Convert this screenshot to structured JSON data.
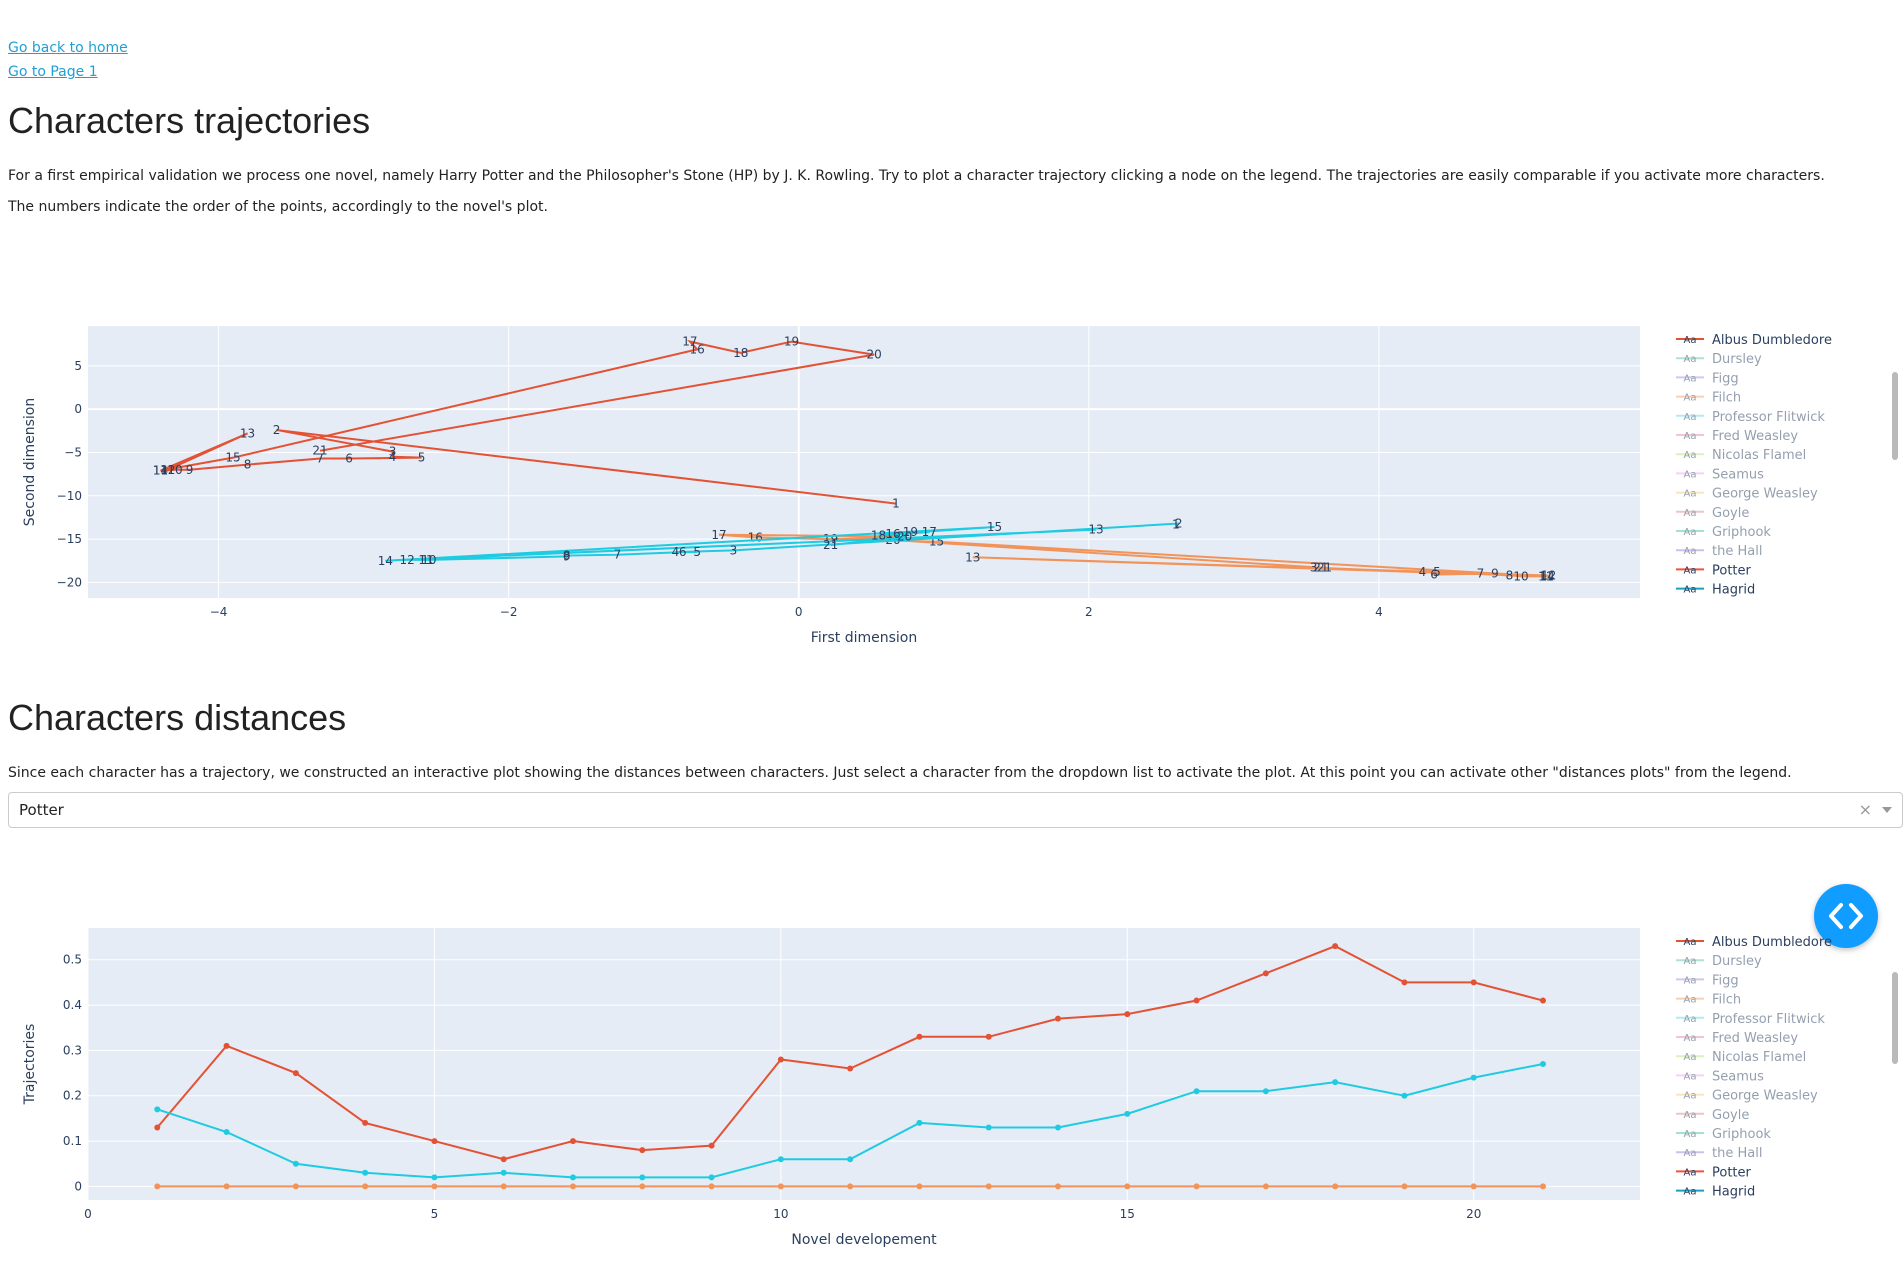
{
  "nav": {
    "home": "Go back to home",
    "page1": "Go to Page 1"
  },
  "section1": {
    "title": "Characters trajectories",
    "p1": "For a first empirical validation we process one novel, namely Harry Potter and the Philosopher's Stone (HP) by J. K. Rowling. Try to plot a character trajectory clicking a node on the legend. The trajectories are easily comparable if you activate more characters.",
    "p2": "The numbers indicate the order of the points, accordingly to the novel's plot."
  },
  "section2": {
    "title": "Characters distances",
    "p1": "Since each character has a trajectory, we constructed an interactive plot showing the distances between characters. Just select a character from the dropdown list to activate the plot. At this point you can activate other \"distances plots\" from the legend."
  },
  "dropdown": {
    "value": "Potter",
    "clear": "×"
  },
  "legend_marker": "Aa",
  "chart_data": [
    {
      "type": "scatter",
      "title": "",
      "xlabel": "First dimension",
      "ylabel": "Second dimension",
      "xlim": [
        -4.9,
        5.8
      ],
      "ylim": [
        -21.8,
        9.6
      ],
      "xticks": [
        -4,
        -2,
        0,
        2,
        4
      ],
      "yticks": [
        5,
        0,
        -5,
        -10,
        -15,
        -20
      ],
      "legend": [
        {
          "name": "Albus Dumbledore",
          "active": true,
          "color": "#e45235"
        },
        {
          "name": "Dursley",
          "active": false,
          "color": "#5fc9a7"
        },
        {
          "name": "Figg",
          "active": false,
          "color": "#a98ee6"
        },
        {
          "name": "Filch",
          "active": false,
          "color": "#f3a06a"
        },
        {
          "name": "Professor Flitwick",
          "active": false,
          "color": "#64d7ec"
        },
        {
          "name": "Fred Weasley",
          "active": false,
          "color": "#f08bab"
        },
        {
          "name": "Nicolas Flamel",
          "active": false,
          "color": "#b6e37d"
        },
        {
          "name": "Seamus",
          "active": false,
          "color": "#f0a4f0"
        },
        {
          "name": "George Weasley",
          "active": false,
          "color": "#f7cc7c"
        },
        {
          "name": "Goyle",
          "active": false,
          "color": "#e08a8a"
        },
        {
          "name": "Griphook",
          "active": false,
          "color": "#4cc6a2"
        },
        {
          "name": "the Hall",
          "active": false,
          "color": "#9d82e0"
        },
        {
          "name": "Potter",
          "active": true,
          "color": "#ef553b"
        },
        {
          "name": "Hagrid",
          "active": true,
          "color": "#1f9fc0"
        }
      ],
      "series": [
        {
          "name": "Albus Dumbledore",
          "color": "#e45235",
          "points": [
            {
              "label": "1",
              "x": 0.67,
              "y": -10.9
            },
            {
              "label": "2",
              "x": -3.6,
              "y": -2.4
            },
            {
              "label": "3",
              "x": -2.8,
              "y": -4.9
            },
            {
              "label": "4",
              "x": -2.8,
              "y": -5.5
            },
            {
              "label": "5",
              "x": -2.6,
              "y": -5.6
            },
            {
              "label": "6",
              "x": -3.1,
              "y": -5.7
            },
            {
              "label": "7",
              "x": -3.3,
              "y": -5.7
            },
            {
              "label": "8",
              "x": -3.8,
              "y": -6.4
            },
            {
              "label": "9",
              "x": -4.2,
              "y": -7.0
            },
            {
              "label": "10",
              "x": -4.3,
              "y": -7.0
            },
            {
              "label": "11",
              "x": -4.4,
              "y": -7.1
            },
            {
              "label": "12",
              "x": -4.35,
              "y": -7.0
            },
            {
              "label": "13",
              "x": -3.8,
              "y": -2.8
            },
            {
              "label": "14",
              "x": -4.4,
              "y": -7.1
            },
            {
              "label": "15",
              "x": -3.9,
              "y": -5.6
            },
            {
              "label": "16",
              "x": -0.7,
              "y": 6.9
            },
            {
              "label": "17",
              "x": -0.75,
              "y": 7.8
            },
            {
              "label": "18",
              "x": -0.4,
              "y": 6.5
            },
            {
              "label": "19",
              "x": -0.05,
              "y": 7.8
            },
            {
              "label": "20",
              "x": 0.52,
              "y": 6.3
            },
            {
              "label": "21",
              "x": -3.3,
              "y": -4.8
            }
          ]
        },
        {
          "name": "Potter",
          "color": "#f2935a",
          "points": [
            {
              "label": "1",
              "x": 3.65,
              "y": -18.3
            },
            {
              "label": "2",
              "x": 3.6,
              "y": -18.3
            },
            {
              "label": "3",
              "x": 3.55,
              "y": -18.3
            },
            {
              "label": "4",
              "x": 4.3,
              "y": -18.8
            },
            {
              "label": "5",
              "x": 4.4,
              "y": -18.8
            },
            {
              "label": "6",
              "x": 4.38,
              "y": -19.1
            },
            {
              "label": "7",
              "x": 4.7,
              "y": -19.0
            },
            {
              "label": "8",
              "x": 4.9,
              "y": -19.2
            },
            {
              "label": "9",
              "x": 4.8,
              "y": -19.0
            },
            {
              "label": "10",
              "x": 4.98,
              "y": -19.3
            },
            {
              "label": "11",
              "x": 5.15,
              "y": -19.3
            },
            {
              "label": "12",
              "x": 5.17,
              "y": -19.2
            },
            {
              "label": "13",
              "x": 1.2,
              "y": -17.1
            },
            {
              "label": "14",
              "x": 5.16,
              "y": -19.3
            },
            {
              "label": "15",
              "x": 0.95,
              "y": -15.3
            },
            {
              "label": "16",
              "x": -0.3,
              "y": -14.8
            },
            {
              "label": "17",
              "x": -0.55,
              "y": -14.5
            },
            {
              "label": "18",
              "x": 0.7,
              "y": -14.7
            },
            {
              "label": "19",
              "x": 0.22,
              "y": -15.0
            },
            {
              "label": "20",
              "x": 0.65,
              "y": -15.1
            },
            {
              "label": "21",
              "x": 3.6,
              "y": -18.3
            }
          ]
        },
        {
          "name": "Hagrid",
          "color": "#1ecbe1",
          "points": [
            {
              "label": "1",
              "x": 2.6,
              "y": -13.3
            },
            {
              "label": "2",
              "x": 2.62,
              "y": -13.2
            },
            {
              "label": "3",
              "x": -0.45,
              "y": -16.3
            },
            {
              "label": "4",
              "x": -0.85,
              "y": -16.5
            },
            {
              "label": "5",
              "x": -0.7,
              "y": -16.5
            },
            {
              "label": "6",
              "x": -0.8,
              "y": -16.5
            },
            {
              "label": "7",
              "x": -1.25,
              "y": -16.8
            },
            {
              "label": "8",
              "x": -1.6,
              "y": -16.9
            },
            {
              "label": "9",
              "x": -1.6,
              "y": -17.0
            },
            {
              "label": "10",
              "x": -2.55,
              "y": -17.4
            },
            {
              "label": "11",
              "x": -2.57,
              "y": -17.4
            },
            {
              "label": "12",
              "x": -2.7,
              "y": -17.4
            },
            {
              "label": "13",
              "x": 2.05,
              "y": -13.9
            },
            {
              "label": "14",
              "x": -2.85,
              "y": -17.5
            },
            {
              "label": "15",
              "x": 1.35,
              "y": -13.6
            },
            {
              "label": "16",
              "x": 0.65,
              "y": -14.4
            },
            {
              "label": "17",
              "x": 0.9,
              "y": -14.2
            },
            {
              "label": "18",
              "x": 0.55,
              "y": -14.6
            },
            {
              "label": "19",
              "x": 0.77,
              "y": -14.2
            },
            {
              "label": "20",
              "x": 0.73,
              "y": -14.7
            },
            {
              "label": "21",
              "x": 0.22,
              "y": -15.7
            }
          ]
        }
      ]
    },
    {
      "type": "line",
      "title": "",
      "xlabel": "Novel developement",
      "ylabel": "Trajectories",
      "xlim": [
        0,
        22.4
      ],
      "ylim": [
        -0.03,
        0.57
      ],
      "xticks": [
        0,
        5,
        10,
        15,
        20
      ],
      "yticks": [
        0,
        0.1,
        0.2,
        0.3,
        0.4,
        0.5
      ],
      "legend": [
        {
          "name": "Albus Dumbledore",
          "active": true,
          "color": "#e45235"
        },
        {
          "name": "Dursley",
          "active": false,
          "color": "#5fc9a7"
        },
        {
          "name": "Figg",
          "active": false,
          "color": "#a98ee6"
        },
        {
          "name": "Filch",
          "active": false,
          "color": "#f3a06a"
        },
        {
          "name": "Professor Flitwick",
          "active": false,
          "color": "#64d7ec"
        },
        {
          "name": "Fred Weasley",
          "active": false,
          "color": "#f08bab"
        },
        {
          "name": "Nicolas Flamel",
          "active": false,
          "color": "#b6e37d"
        },
        {
          "name": "Seamus",
          "active": false,
          "color": "#f0a4f0"
        },
        {
          "name": "George Weasley",
          "active": false,
          "color": "#f7cc7c"
        },
        {
          "name": "Goyle",
          "active": false,
          "color": "#e08a8a"
        },
        {
          "name": "Griphook",
          "active": false,
          "color": "#4cc6a2"
        },
        {
          "name": "the Hall",
          "active": false,
          "color": "#9d82e0"
        },
        {
          "name": "Potter",
          "active": true,
          "color": "#ef553b"
        },
        {
          "name": "Hagrid",
          "active": true,
          "color": "#1f9fc0"
        }
      ],
      "x": [
        1,
        2,
        3,
        4,
        5,
        6,
        7,
        8,
        9,
        10,
        11,
        12,
        13,
        14,
        15,
        16,
        17,
        18,
        19,
        20,
        21
      ],
      "series": [
        {
          "name": "Albus Dumbledore",
          "color": "#e45235",
          "values": [
            0.13,
            0.31,
            0.25,
            0.14,
            0.1,
            0.06,
            0.1,
            0.08,
            0.09,
            0.28,
            0.26,
            0.33,
            0.33,
            0.37,
            0.38,
            0.41,
            0.47,
            0.53,
            0.45,
            0.45,
            0.41
          ]
        },
        {
          "name": "Hagrid",
          "color": "#1ecbe1",
          "values": [
            0.17,
            0.12,
            0.05,
            0.03,
            0.02,
            0.03,
            0.02,
            0.02,
            0.02,
            0.06,
            0.06,
            0.14,
            0.13,
            0.13,
            0.16,
            0.21,
            0.21,
            0.23,
            0.2,
            0.24,
            0.27
          ]
        },
        {
          "name": "Potter",
          "color": "#f2935a",
          "values": [
            0,
            0,
            0,
            0,
            0,
            0,
            0,
            0,
            0,
            0,
            0,
            0,
            0,
            0,
            0,
            0,
            0,
            0,
            0,
            0,
            0
          ]
        }
      ]
    }
  ]
}
